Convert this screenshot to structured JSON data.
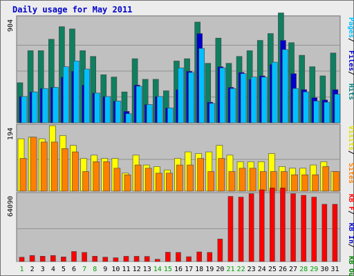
{
  "chart_data": {
    "type": "bar",
    "title": "Daily usage for May 2011",
    "days": [
      "1",
      "2",
      "3",
      "4",
      "5",
      "6",
      "7",
      "8",
      "9",
      "10",
      "11",
      "12",
      "13",
      "14",
      "15",
      "16",
      "17",
      "18",
      "19",
      "20",
      "21",
      "22",
      "23",
      "24",
      "25",
      "26",
      "27",
      "28",
      "29",
      "30",
      "31"
    ],
    "weekend_days": [
      "1",
      "7",
      "8",
      "14",
      "15",
      "21",
      "22",
      "28",
      "29"
    ],
    "panels": [
      {
        "ymax_label": "904",
        "ymax": 904,
        "legend": [
          {
            "text": "Pages",
            "color": "#00c0ff"
          },
          {
            "text": "Files",
            "color": "#0000cc"
          },
          {
            "text": "Hits",
            "color": "#007f7f"
          }
        ],
        "series": [
          {
            "name": "Hits",
            "color": "#0f7f5f",
            "values": [
              350,
              630,
              630,
              730,
              840,
              820,
              630,
              580,
              420,
              400,
              270,
              560,
              380,
              380,
              280,
              540,
              560,
              880,
              520,
              740,
              520,
              580,
              630,
              720,
              780,
              960,
              700,
              590,
              490,
              410,
              610
            ]
          },
          {
            "name": "Files",
            "color": "#0000cc",
            "values": [
              230,
              270,
              300,
              310,
              400,
              450,
              330,
              260,
              230,
              190,
              100,
              330,
              160,
              230,
              130,
              290,
              450,
              780,
              180,
              490,
              310,
              440,
              380,
              410,
              510,
              720,
              430,
              290,
              220,
              200,
              290
            ]
          },
          {
            "name": "Pages",
            "color": "#00c0ff",
            "values": [
              230,
              270,
              300,
              310,
              490,
              540,
              470,
              260,
              230,
              190,
              80,
              320,
              160,
              230,
              130,
              480,
              440,
              650,
              170,
              480,
              300,
              430,
              400,
              400,
              530,
              640,
              300,
              270,
              190,
              180,
              250
            ]
          }
        ]
      },
      {
        "ymax_label": "194",
        "ymax": 194,
        "legend": [
          {
            "text": "Visits",
            "color": "#e0e000"
          },
          {
            "text": "Sites",
            "color": "#ff8000"
          }
        ],
        "series": [
          {
            "name": "Visits",
            "color": "#ffff00",
            "values": [
              160,
              165,
              160,
              200,
              170,
              140,
              100,
              110,
              100,
              100,
              55,
              110,
              80,
              75,
              65,
              100,
              120,
              115,
              120,
              140,
              110,
              90,
              90,
              90,
              115,
              75,
              70,
              70,
              80,
              90,
              60
            ]
          },
          {
            "name": "Sites",
            "color": "#ff8000",
            "values": [
              100,
              165,
              150,
              150,
              130,
              120,
              60,
              90,
              90,
              70,
              50,
              80,
              70,
              55,
              55,
              80,
              80,
              100,
              60,
              100,
              60,
              70,
              70,
              60,
              60,
              60,
              50,
              50,
              50,
              75,
              60
            ]
          }
        ]
      },
      {
        "ymax_label": "64090",
        "ymax": 64090,
        "legend": [
          {
            "text": "KB F",
            "color": "#ff0000"
          },
          {
            "text": "KB In",
            "color": "#0000cc"
          },
          {
            "text": "KB Out",
            "color": "#007f00"
          }
        ],
        "series": [
          {
            "name": "KB F",
            "color": "#ff0000",
            "values": [
              4200,
              5900,
              5200,
              5900,
              4500,
              9800,
              8900,
              5200,
              4300,
              3700,
              5100,
              5100,
              5000,
              2200,
              9100,
              8900,
              4700,
              9400,
              8900,
              22000,
              63700,
              63000,
              66400,
              70200,
              72000,
              72000,
              66400,
              64800,
              63000,
              56000,
              56000
            ]
          }
        ]
      }
    ]
  }
}
